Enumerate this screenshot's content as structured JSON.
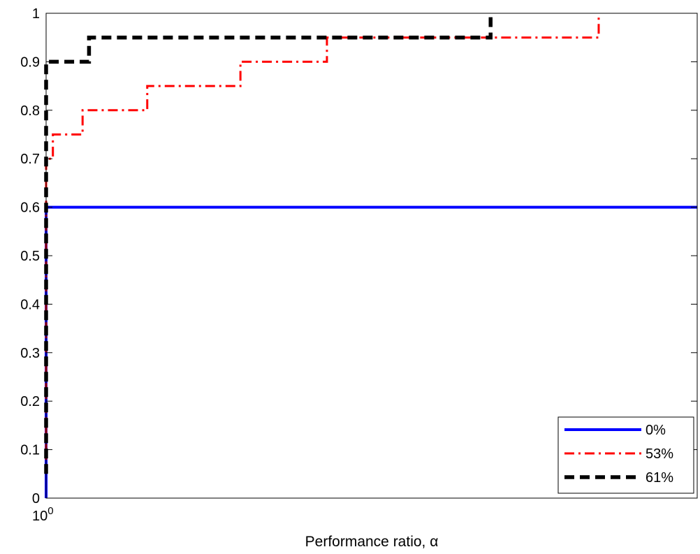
{
  "chart_data": {
    "type": "line",
    "xlabel": "Performance ratio, α",
    "ylabel": "",
    "title": "",
    "x_scale": "log",
    "xlim": [
      1,
      2.6
    ],
    "ylim": [
      0,
      1
    ],
    "x_tick_labels": [
      {
        "base": "10",
        "exp": "0"
      }
    ],
    "y_ticks": [
      0,
      0.1,
      0.2,
      0.3,
      0.4,
      0.5,
      0.6,
      0.7,
      0.8,
      0.9,
      1
    ],
    "y_tick_labels": [
      "0",
      "0.1",
      "0.2",
      "0.3",
      "0.4",
      "0.5",
      "0.6",
      "0.7",
      "0.8",
      "0.9",
      "1"
    ],
    "grid": false,
    "legend_position": "bottom-right",
    "series": [
      {
        "name": "0%",
        "color": "#0000ff",
        "style": "solid",
        "points": [
          [
            1,
            0
          ],
          [
            1,
            0.6
          ],
          [
            2.6,
            0.6
          ]
        ]
      },
      {
        "name": "53%",
        "color": "#ff0000",
        "style": "dashdot",
        "points": [
          [
            1,
            0.05
          ],
          [
            1,
            0.7
          ],
          [
            1.01,
            0.7
          ],
          [
            1.01,
            0.75
          ],
          [
            1.055,
            0.75
          ],
          [
            1.055,
            0.8
          ],
          [
            1.16,
            0.8
          ],
          [
            1.16,
            0.85
          ],
          [
            1.33,
            0.85
          ],
          [
            1.33,
            0.9
          ],
          [
            1.51,
            0.9
          ],
          [
            1.51,
            0.95
          ],
          [
            2.25,
            0.95
          ],
          [
            2.25,
            1.0
          ]
        ]
      },
      {
        "name": "61%",
        "color": "#000000",
        "style": "dashed",
        "points": [
          [
            1,
            0.05
          ],
          [
            1,
            0.9
          ],
          [
            1.065,
            0.9
          ],
          [
            1.065,
            0.95
          ],
          [
            1.92,
            0.95
          ],
          [
            1.92,
            1.0
          ]
        ]
      }
    ]
  }
}
